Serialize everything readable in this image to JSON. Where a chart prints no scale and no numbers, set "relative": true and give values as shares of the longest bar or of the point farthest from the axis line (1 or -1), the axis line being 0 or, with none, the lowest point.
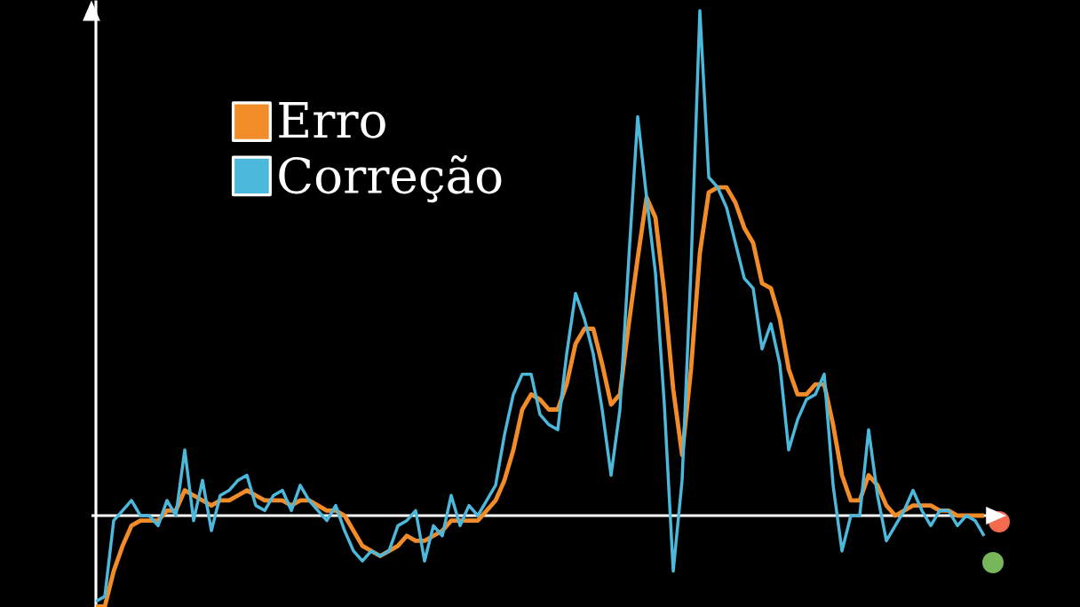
{
  "chart_data": {
    "type": "line",
    "relative": true,
    "legend": "top left",
    "categories": [
      null,
      null,
      null,
      null,
      null,
      null,
      null,
      null,
      null,
      null,
      null,
      null,
      null,
      null,
      null,
      null,
      null,
      null,
      null,
      null,
      null,
      null,
      null,
      null,
      null,
      null,
      null,
      null,
      null,
      null,
      null,
      null,
      null,
      null,
      null,
      null,
      null,
      null,
      null,
      null,
      null,
      null,
      null,
      null,
      null,
      null,
      null,
      null,
      null,
      null,
      null,
      null,
      null,
      null,
      null,
      null,
      null,
      null,
      null,
      null,
      null,
      null,
      null,
      null,
      null,
      null,
      null,
      null,
      null,
      null,
      null,
      null,
      null,
      null,
      null,
      null,
      null,
      null,
      null,
      null,
      null,
      null,
      null,
      null,
      null,
      null,
      null,
      null,
      null,
      null,
      null,
      null,
      null,
      null,
      null,
      null,
      null,
      null,
      null,
      null,
      null
    ],
    "series": [
      {
        "name": "Erro",
        "color": "#f28c28",
        "values": [
          -0.18,
          -0.18,
          -0.11,
          -0.06,
          -0.02,
          -0.01,
          -0.01,
          -0.01,
          0.01,
          0.01,
          0.05,
          0.04,
          0.03,
          0.02,
          0.03,
          0.03,
          0.04,
          0.05,
          0.04,
          0.03,
          0.03,
          0.03,
          0.02,
          0.03,
          0.03,
          0.02,
          0.01,
          0.01,
          0.0,
          -0.03,
          -0.06,
          -0.07,
          -0.08,
          -0.07,
          -0.06,
          -0.04,
          -0.05,
          -0.05,
          -0.04,
          -0.03,
          -0.01,
          -0.01,
          -0.01,
          -0.01,
          0.01,
          0.03,
          0.07,
          0.13,
          0.21,
          0.24,
          0.23,
          0.21,
          0.21,
          0.26,
          0.34,
          0.37,
          0.37,
          0.3,
          0.22,
          0.24,
          0.38,
          0.51,
          0.63,
          0.59,
          0.44,
          0.25,
          0.12,
          0.29,
          0.52,
          0.64,
          0.65,
          0.65,
          0.62,
          0.57,
          0.54,
          0.46,
          0.45,
          0.39,
          0.29,
          0.24,
          0.24,
          0.26,
          0.26,
          0.18,
          0.08,
          0.03,
          0.03,
          0.08,
          0.06,
          0.02,
          0.0,
          0.01,
          0.02,
          0.02,
          0.02,
          0.01,
          0.01,
          0.0,
          0.0,
          0.0,
          0.0
        ]
      },
      {
        "name": "Correção",
        "color": "#4bb8dc",
        "values": [
          -0.17,
          -0.16,
          -0.01,
          0.01,
          0.03,
          0.0,
          0.0,
          -0.02,
          0.03,
          0.0,
          0.13,
          -0.01,
          0.07,
          -0.03,
          0.04,
          0.05,
          0.07,
          0.08,
          0.02,
          0.01,
          0.04,
          0.05,
          0.01,
          0.06,
          0.03,
          0.01,
          -0.01,
          0.02,
          -0.03,
          -0.07,
          -0.09,
          -0.07,
          -0.08,
          -0.07,
          -0.02,
          -0.01,
          0.01,
          -0.09,
          -0.02,
          -0.04,
          0.04,
          -0.02,
          0.02,
          0.0,
          0.03,
          0.06,
          0.16,
          0.24,
          0.28,
          0.28,
          0.2,
          0.18,
          0.17,
          0.32,
          0.44,
          0.39,
          0.32,
          0.21,
          0.08,
          0.21,
          0.51,
          0.79,
          0.63,
          0.48,
          0.22,
          -0.11,
          0.07,
          0.49,
          1.0,
          0.67,
          0.65,
          0.61,
          0.54,
          0.47,
          0.45,
          0.33,
          0.38,
          0.3,
          0.13,
          0.19,
          0.23,
          0.24,
          0.28,
          0.06,
          -0.07,
          0.0,
          0.0,
          0.17,
          0.04,
          -0.05,
          -0.02,
          0.01,
          0.05,
          0.01,
          -0.02,
          0.01,
          0.01,
          -0.02,
          0.0,
          -0.01,
          -0.04
        ]
      }
    ]
  }
}
